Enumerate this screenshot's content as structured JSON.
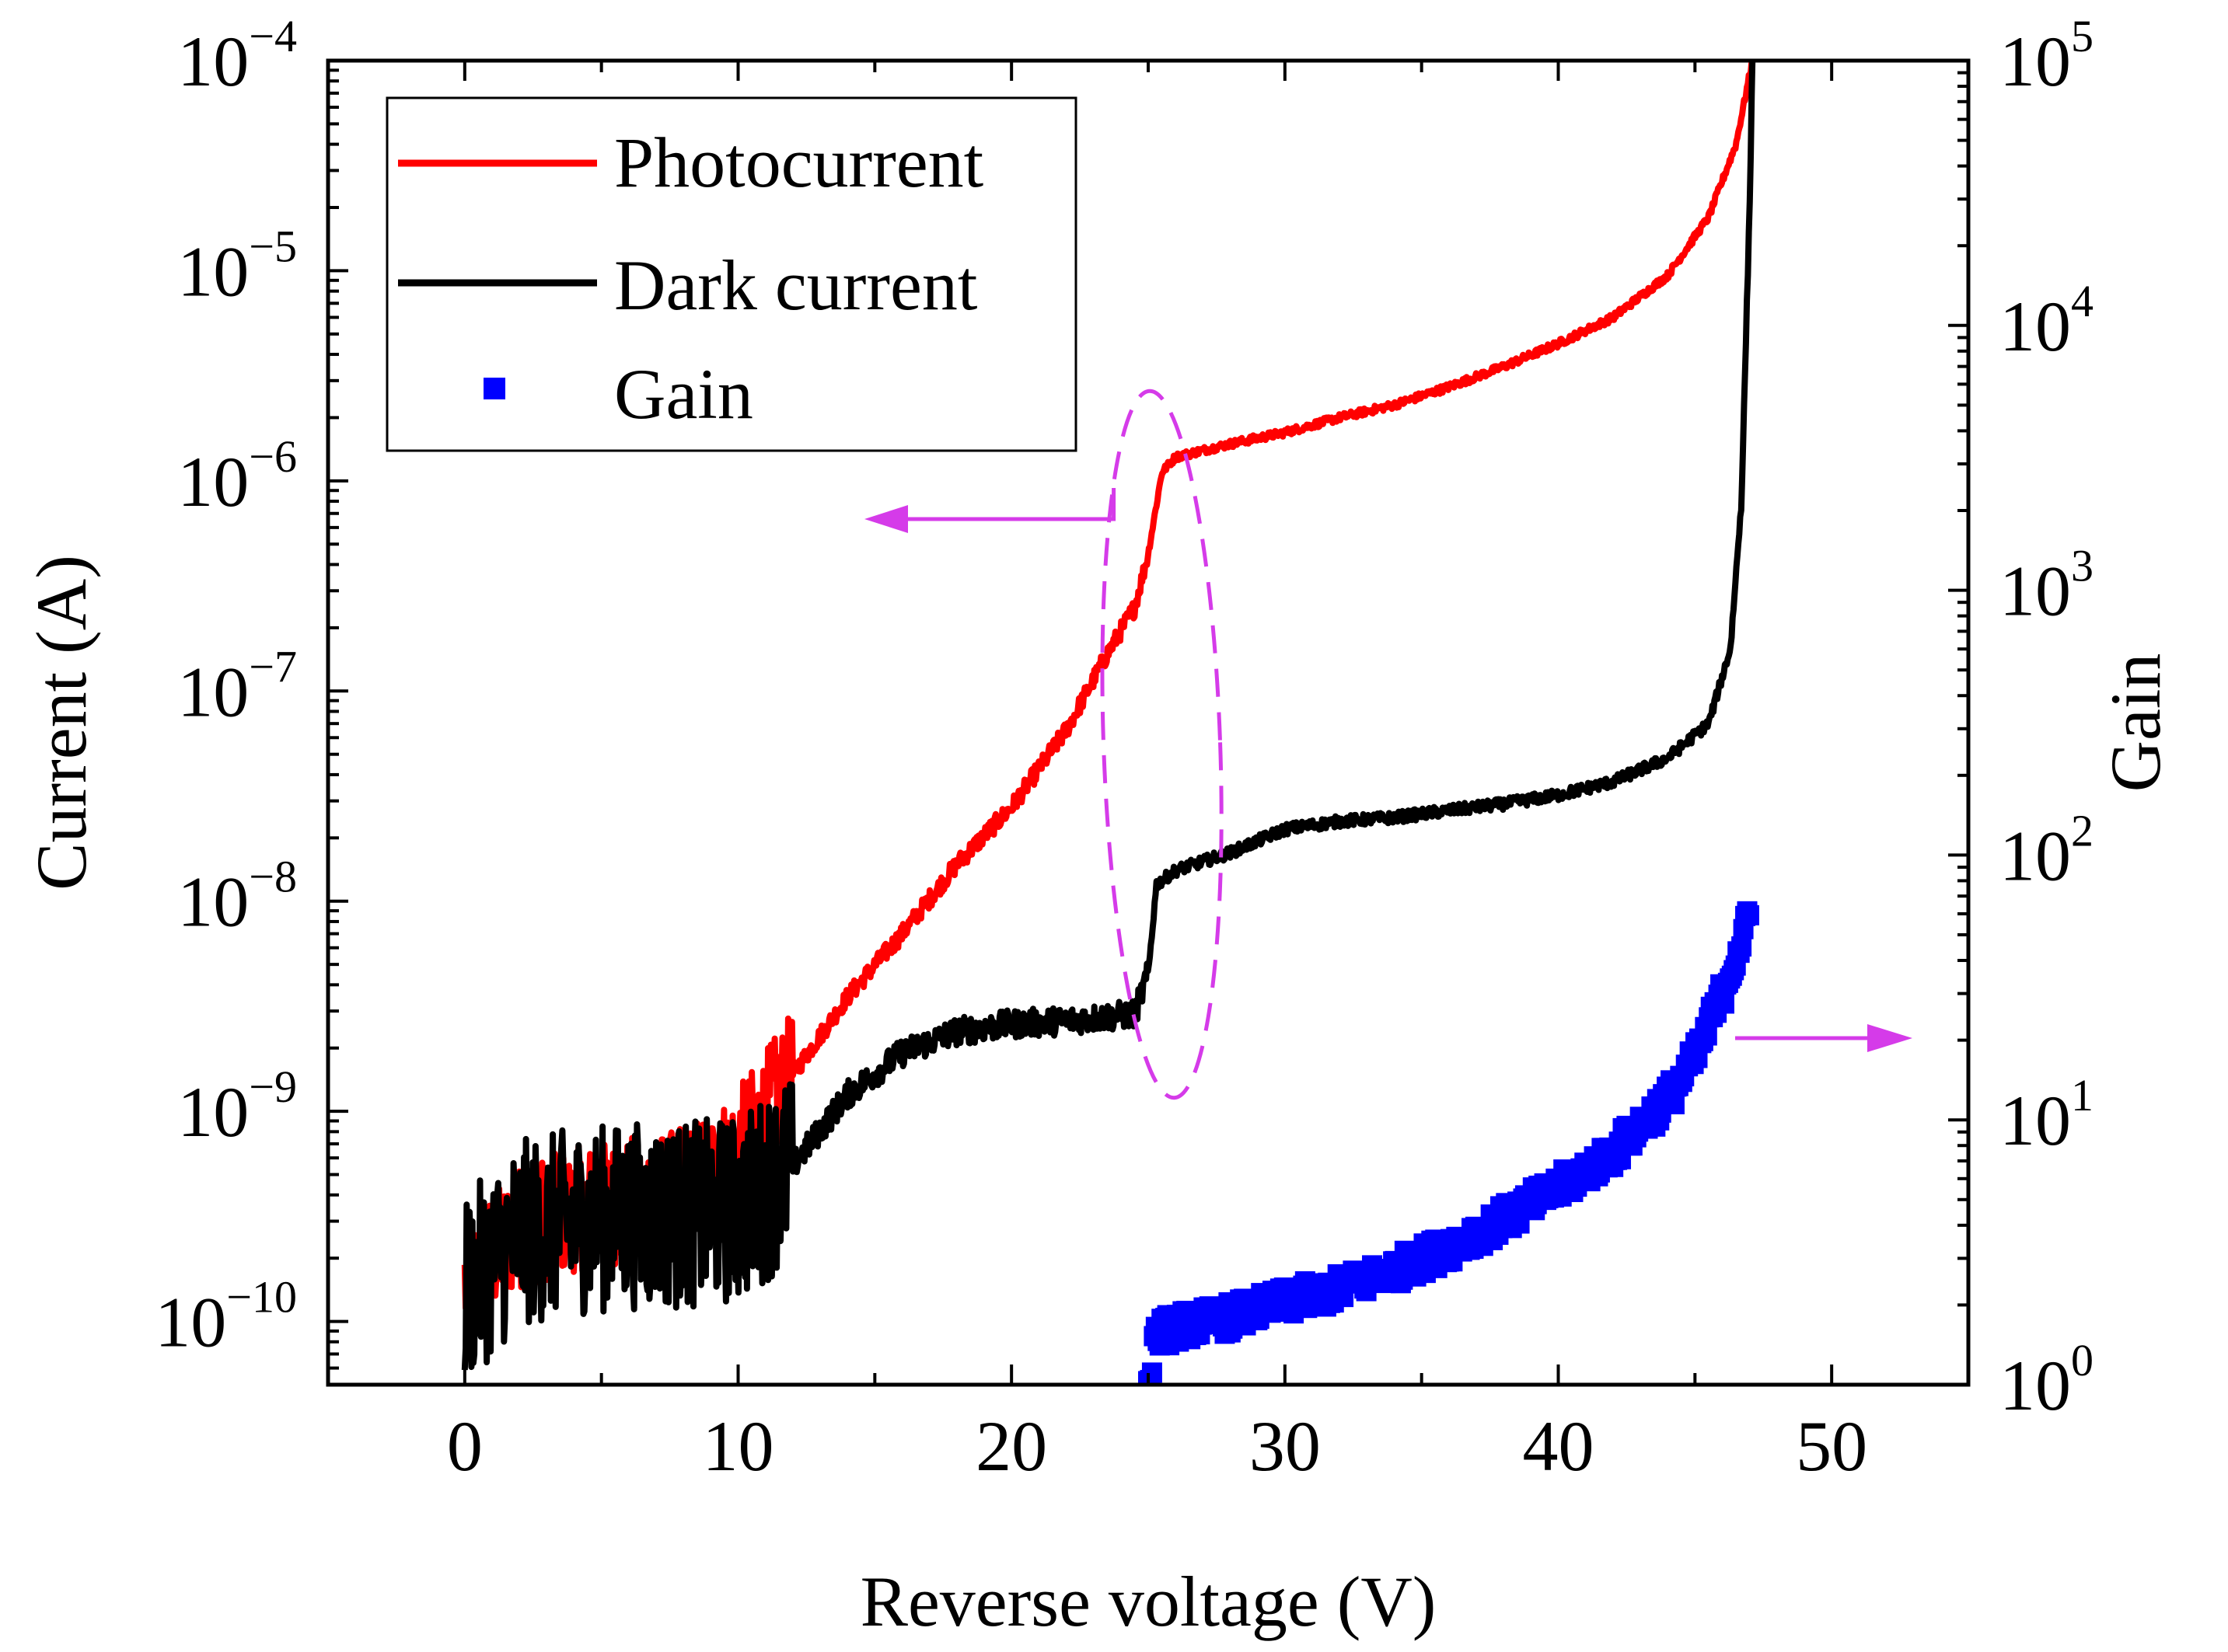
{
  "chart_data": {
    "type": "line",
    "xlabel": "Reverse voltage (V)",
    "ylabel_left": "Current (A)",
    "ylabel_right": "Gain",
    "xlim": [
      -5,
      55
    ],
    "x_ticks": [
      0,
      10,
      20,
      30,
      40,
      50
    ],
    "ylim_left": [
      5e-11,
      0.0001
    ],
    "yscale_left": "log",
    "y_ticks_left": [
      {
        "base": "10",
        "exp": "−10",
        "value": 1e-10
      },
      {
        "base": "10",
        "exp": "−9",
        "value": 1e-09
      },
      {
        "base": "10",
        "exp": "−8",
        "value": 1e-08
      },
      {
        "base": "10",
        "exp": "−7",
        "value": 1e-07
      },
      {
        "base": "10",
        "exp": "−6",
        "value": 1e-06
      },
      {
        "base": "10",
        "exp": "−5",
        "value": 1e-05
      },
      {
        "base": "10",
        "exp": "−4",
        "value": 0.0001
      }
    ],
    "ylim_right": [
      1,
      100000
    ],
    "yscale_right": "log",
    "y_ticks_right": [
      {
        "base": "10",
        "exp": "0",
        "value": 1
      },
      {
        "base": "10",
        "exp": "1",
        "value": 10
      },
      {
        "base": "10",
        "exp": "2",
        "value": 100
      },
      {
        "base": "10",
        "exp": "3",
        "value": 1000
      },
      {
        "base": "10",
        "exp": "4",
        "value": 10000
      },
      {
        "base": "10",
        "exp": "5",
        "value": 100000
      }
    ],
    "legend_position": "top-left",
    "series": [
      {
        "name": "Photocurrent",
        "color": "#ff0000",
        "axis": "left",
        "noise": 0.3,
        "points": [
          [
            0,
            1.5e-10
          ],
          [
            2,
            2.8e-10
          ],
          [
            4,
            3.4e-10
          ],
          [
            6,
            3.8e-10
          ],
          [
            8,
            4.2e-10
          ],
          [
            10,
            6.5e-10
          ],
          [
            12,
            1.5e-09
          ],
          [
            14,
            3.5e-09
          ],
          [
            16,
            7e-09
          ],
          [
            18,
            1.5e-08
          ],
          [
            20,
            2.8e-08
          ],
          [
            22,
            6.5e-08
          ],
          [
            23.5,
            1.5e-07
          ],
          [
            24.5,
            2.5e-07
          ],
          [
            25,
            4.5e-07
          ],
          [
            25.5,
            1.1e-06
          ],
          [
            26,
            1.3e-06
          ],
          [
            28,
            1.5e-06
          ],
          [
            30,
            1.7e-06
          ],
          [
            32,
            2e-06
          ],
          [
            34,
            2.3e-06
          ],
          [
            36,
            2.8e-06
          ],
          [
            38,
            3.5e-06
          ],
          [
            40,
            4.5e-06
          ],
          [
            42,
            6e-06
          ],
          [
            44,
            9.5e-06
          ],
          [
            45.5,
            1.8e-05
          ],
          [
            46.5,
            4e-05
          ],
          [
            47.1,
            0.0001
          ]
        ]
      },
      {
        "name": "Dark current",
        "color": "#000000",
        "axis": "left",
        "noise": 0.45,
        "points": [
          [
            0,
            1.4e-10
          ],
          [
            2,
            2.6e-10
          ],
          [
            4,
            3e-10
          ],
          [
            6,
            3.2e-10
          ],
          [
            8,
            3.2e-10
          ],
          [
            10,
            3.4e-10
          ],
          [
            12,
            5.5e-10
          ],
          [
            14,
            1.2e-09
          ],
          [
            16,
            1.9e-09
          ],
          [
            18,
            2.4e-09
          ],
          [
            20,
            2.6e-09
          ],
          [
            22,
            2.7e-09
          ],
          [
            24.5,
            2.9e-09
          ],
          [
            25,
            4.5e-09
          ],
          [
            25.3,
            1.2e-08
          ],
          [
            26,
            1.4e-08
          ],
          [
            28,
            1.7e-08
          ],
          [
            30,
            2.2e-08
          ],
          [
            32,
            2.4e-08
          ],
          [
            34,
            2.5e-08
          ],
          [
            36,
            2.7e-08
          ],
          [
            38,
            2.9e-08
          ],
          [
            40,
            3.2e-08
          ],
          [
            42,
            3.7e-08
          ],
          [
            44,
            4.8e-08
          ],
          [
            45.5,
            7e-08
          ],
          [
            46.3,
            1.6e-07
          ],
          [
            46.7,
            8e-07
          ],
          [
            47.0,
            2e-05
          ],
          [
            47.1,
            0.0001
          ]
        ]
      },
      {
        "name": "Gain",
        "color": "#0000ff",
        "axis": "right",
        "marker": "square",
        "noise": 0.06,
        "points": [
          [
            25,
            1.0
          ],
          [
            25.3,
            1.55
          ],
          [
            26,
            1.65
          ],
          [
            28,
            1.8
          ],
          [
            30,
            2.05
          ],
          [
            32,
            2.3
          ],
          [
            34,
            2.7
          ],
          [
            36,
            3.3
          ],
          [
            38,
            4.2
          ],
          [
            40,
            5.5
          ],
          [
            42,
            7.5
          ],
          [
            44,
            12
          ],
          [
            45,
            17
          ],
          [
            46,
            30
          ],
          [
            46.5,
            42
          ],
          [
            47,
            58
          ]
        ]
      }
    ],
    "annotations": {
      "ellipse_center": [
        25.5,
        1.3e-08
      ],
      "ellipse_color": "#d53be9"
    }
  }
}
